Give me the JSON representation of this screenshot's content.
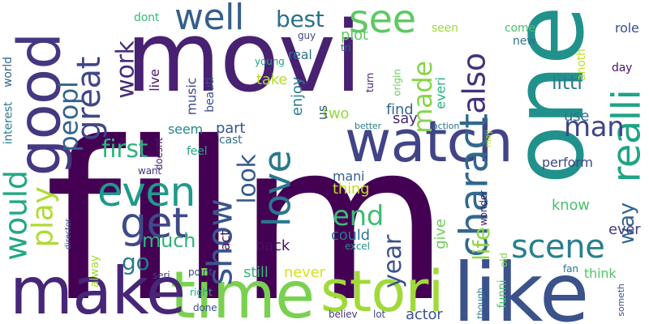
{
  "words": [
    {
      "text": "film",
      "color": "#440154"
    },
    {
      "text": "movi",
      "color": "#482173"
    },
    {
      "text": "one",
      "color": "#21918c"
    },
    {
      "text": "like",
      "color": "#3b528b"
    },
    {
      "text": "time",
      "color": "#7ad151"
    },
    {
      "text": "make",
      "color": "#482677"
    },
    {
      "text": "good",
      "color": "#453781"
    },
    {
      "text": "watch",
      "color": "#414487"
    },
    {
      "text": "stori",
      "color": "#a0da39"
    },
    {
      "text": "see",
      "color": "#5ec962"
    },
    {
      "text": "charact",
      "color": "#31688e"
    },
    {
      "text": "realli",
      "color": "#20a386"
    },
    {
      "text": "well",
      "color": "#355f8d"
    },
    {
      "text": "love",
      "color": "#2a788e"
    },
    {
      "text": "get",
      "color": "#3e4a89"
    },
    {
      "text": "even",
      "color": "#1f9a8a"
    },
    {
      "text": "show",
      "color": "#39568c"
    },
    {
      "text": "great",
      "color": "#404688"
    },
    {
      "text": "scene",
      "color": "#277f8e"
    },
    {
      "text": "would",
      "color": "#22a884"
    },
    {
      "text": "also",
      "color": "#46327e"
    },
    {
      "text": "made",
      "color": "#86d549"
    },
    {
      "text": "end",
      "color": "#3dbc74"
    },
    {
      "text": "play",
      "color": "#addc30"
    },
    {
      "text": "man",
      "color": "#404588"
    },
    {
      "text": "first",
      "color": "#2eb37c"
    },
    {
      "text": "look",
      "color": "#365c8d"
    },
    {
      "text": "peopl",
      "color": "#33638d"
    },
    {
      "text": "best",
      "color": "#2c718e"
    },
    {
      "text": "work",
      "color": "#472d7b"
    },
    {
      "text": "year",
      "color": "#3b518b"
    },
    {
      "text": "way",
      "color": "#32658e"
    },
    {
      "text": "life",
      "color": "#90d743"
    },
    {
      "text": "much",
      "color": "#2fb47c"
    },
    {
      "text": "go",
      "color": "#297a8e"
    },
    {
      "text": "littl",
      "color": "#287c8e"
    },
    {
      "text": "actor",
      "color": "#3b528b"
    },
    {
      "text": "never",
      "color": "#d8e219"
    },
    {
      "text": "back",
      "color": "#471063"
    },
    {
      "text": "still",
      "color": "#35b779"
    },
    {
      "text": "give",
      "color": "#6ccd5a"
    },
    {
      "text": "could",
      "color": "#2b758e"
    },
    {
      "text": "act",
      "color": "#470d60"
    },
    {
      "text": "know",
      "color": "#4ac16d"
    },
    {
      "text": "ever",
      "color": "#443a83"
    },
    {
      "text": "think",
      "color": "#52c569"
    },
    {
      "text": "perform",
      "color": "#3f4788"
    },
    {
      "text": "use",
      "color": "#2d708e"
    },
    {
      "text": "thing",
      "color": "#bddf26"
    },
    {
      "text": "mani",
      "color": "#34618d"
    },
    {
      "text": "part",
      "color": "#3a548c"
    },
    {
      "text": "two",
      "color": "#95d840"
    },
    {
      "text": "say",
      "color": "#482878"
    },
    {
      "text": "find",
      "color": "#31688e"
    },
    {
      "text": "enjoy",
      "color": "#26818e"
    },
    {
      "text": "us",
      "color": "#38598c"
    },
    {
      "text": "take",
      "color": "#b5de2b"
    },
    {
      "text": "plot",
      "color": "#5ec962"
    },
    {
      "text": "real",
      "color": "#2e6f8e"
    },
    {
      "text": "music",
      "color": "#3e4989"
    },
    {
      "text": "live",
      "color": "#48186a"
    },
    {
      "text": "seem",
      "color": "#25848e"
    },
    {
      "text": "feel",
      "color": "#22a785"
    },
    {
      "text": "cast",
      "color": "#2d718e"
    },
    {
      "text": "doesnt",
      "color": "#481b6d"
    },
    {
      "text": "beauti",
      "color": "#3d4d8a"
    },
    {
      "text": "want",
      "color": "#46337f"
    },
    {
      "text": "interest",
      "color": "#29788e"
    },
    {
      "text": "world",
      "color": "#31678e"
    },
    {
      "text": "dont",
      "color": "#38b977"
    },
    {
      "text": "come",
      "color": "#4ac16d"
    },
    {
      "text": "new",
      "color": "#2b748e"
    },
    {
      "text": "role",
      "color": "#3e4c8a"
    },
    {
      "text": "anoth",
      "color": "#c0df25"
    },
    {
      "text": "day",
      "color": "#471365"
    },
    {
      "text": "everi",
      "color": "#2db27d"
    },
    {
      "text": "seen",
      "color": "#9dd93b"
    },
    {
      "text": "guy",
      "color": "#3f4889"
    },
    {
      "text": "tri",
      "color": "#33638d"
    },
    {
      "text": "young",
      "color": "#22a785"
    },
    {
      "text": "origin",
      "color": "#6ccd5a"
    },
    {
      "text": "turn",
      "color": "#482475"
    },
    {
      "text": "better",
      "color": "#27808e"
    },
    {
      "text": "action",
      "color": "#2a768e"
    },
    {
      "text": "may",
      "color": "#bade28"
    },
    {
      "text": "wonder",
      "color": "#481c6e"
    },
    {
      "text": "fan",
      "color": "#2c728e"
    },
    {
      "text": "someth",
      "color": "#3b528b"
    },
    {
      "text": "director",
      "color": "#39568c"
    },
    {
      "text": "alway",
      "color": "#a5db36"
    },
    {
      "text": "point",
      "color": "#3c4f8a"
    },
    {
      "text": "seri",
      "color": "#443b84"
    },
    {
      "text": "right",
      "color": "#25ab82"
    },
    {
      "text": "done",
      "color": "#3c508b"
    },
    {
      "text": "believ",
      "color": "#453882"
    },
    {
      "text": "lot",
      "color": "#3e4a89"
    },
    {
      "text": "though",
      "color": "#2a778e"
    },
    {
      "text": "funni",
      "color": "#4cc26c"
    },
    {
      "text": "old",
      "color": "#7fd34e"
    },
    {
      "text": "excel",
      "color": "#21918c"
    }
  ]
}
